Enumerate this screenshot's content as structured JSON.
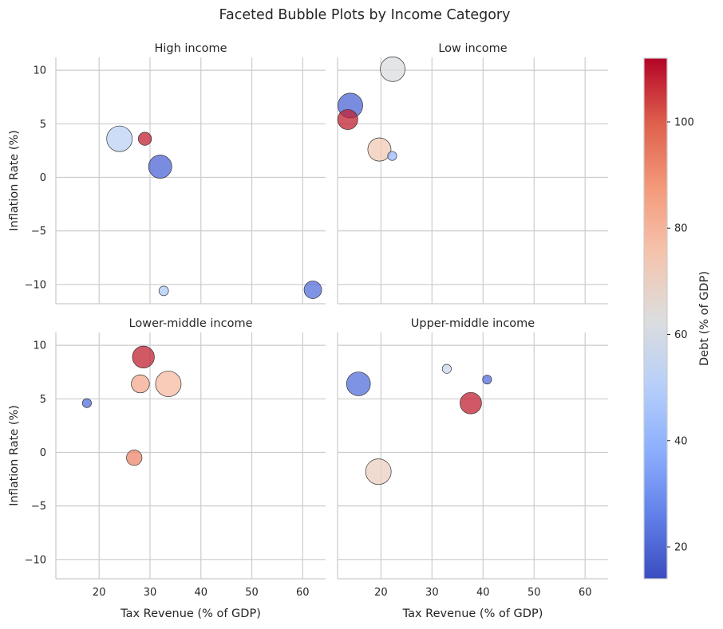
{
  "chart_data": {
    "type": "scatter",
    "title": "Faceted Bubble Plots by Income Category",
    "xlabel": "Tax Revenue (% of GDP)",
    "ylabel": "Inflation Rate (%)",
    "colorbar_label": "Debt (% of GDP)",
    "colormap": "coolwarm",
    "color_range": [
      14,
      112
    ],
    "colorbar_ticks": [
      20,
      40,
      60,
      80,
      100
    ],
    "xlim": [
      11.5,
      64.5
    ],
    "ylim": [
      -11.8,
      11.2
    ],
    "x_ticks": [
      20,
      30,
      40,
      50,
      60
    ],
    "y_ticks": [
      10,
      5,
      0,
      -5,
      -10
    ],
    "grid": true,
    "facets": [
      {
        "title": "High income",
        "points": [
          {
            "x": 24,
            "y": 3.6,
            "debt": 52,
            "size": 680
          },
          {
            "x": 29,
            "y": 3.6,
            "debt": 108,
            "size": 180
          },
          {
            "x": 32,
            "y": 1.0,
            "debt": 20,
            "size": 560
          },
          {
            "x": 32.7,
            "y": -10.6,
            "debt": 48,
            "size": 95
          },
          {
            "x": 62,
            "y": -10.5,
            "debt": 22,
            "size": 320
          }
        ]
      },
      {
        "title": "Low income",
        "points": [
          {
            "x": 22.3,
            "y": 10.1,
            "debt": 62,
            "size": 640
          },
          {
            "x": 14,
            "y": 6.7,
            "debt": 20,
            "size": 640
          },
          {
            "x": 13.5,
            "y": 5.4,
            "debt": 108,
            "size": 420
          },
          {
            "x": 19.7,
            "y": 2.6,
            "debt": 73,
            "size": 560
          },
          {
            "x": 22.2,
            "y": 2.0,
            "debt": 42,
            "size": 85
          }
        ]
      },
      {
        "title": "Lower-middle income",
        "points": [
          {
            "x": 28.7,
            "y": 8.9,
            "debt": 108,
            "size": 500
          },
          {
            "x": 28.1,
            "y": 6.4,
            "debt": 83,
            "size": 340
          },
          {
            "x": 33.6,
            "y": 6.4,
            "debt": 78,
            "size": 680
          },
          {
            "x": 17.6,
            "y": 4.6,
            "debt": 22,
            "size": 85
          },
          {
            "x": 26.9,
            "y": -0.5,
            "debt": 92,
            "size": 250
          }
        ]
      },
      {
        "title": "Upper-middle income",
        "points": [
          {
            "x": 15.6,
            "y": 6.4,
            "debt": 22,
            "size": 590
          },
          {
            "x": 32.9,
            "y": 7.8,
            "debt": 57,
            "size": 85
          },
          {
            "x": 40.8,
            "y": 6.8,
            "debt": 22,
            "size": 85
          },
          {
            "x": 37.6,
            "y": 4.6,
            "debt": 108,
            "size": 480
          },
          {
            "x": 19.5,
            "y": -1.8,
            "debt": 70,
            "size": 680
          }
        ]
      }
    ]
  }
}
